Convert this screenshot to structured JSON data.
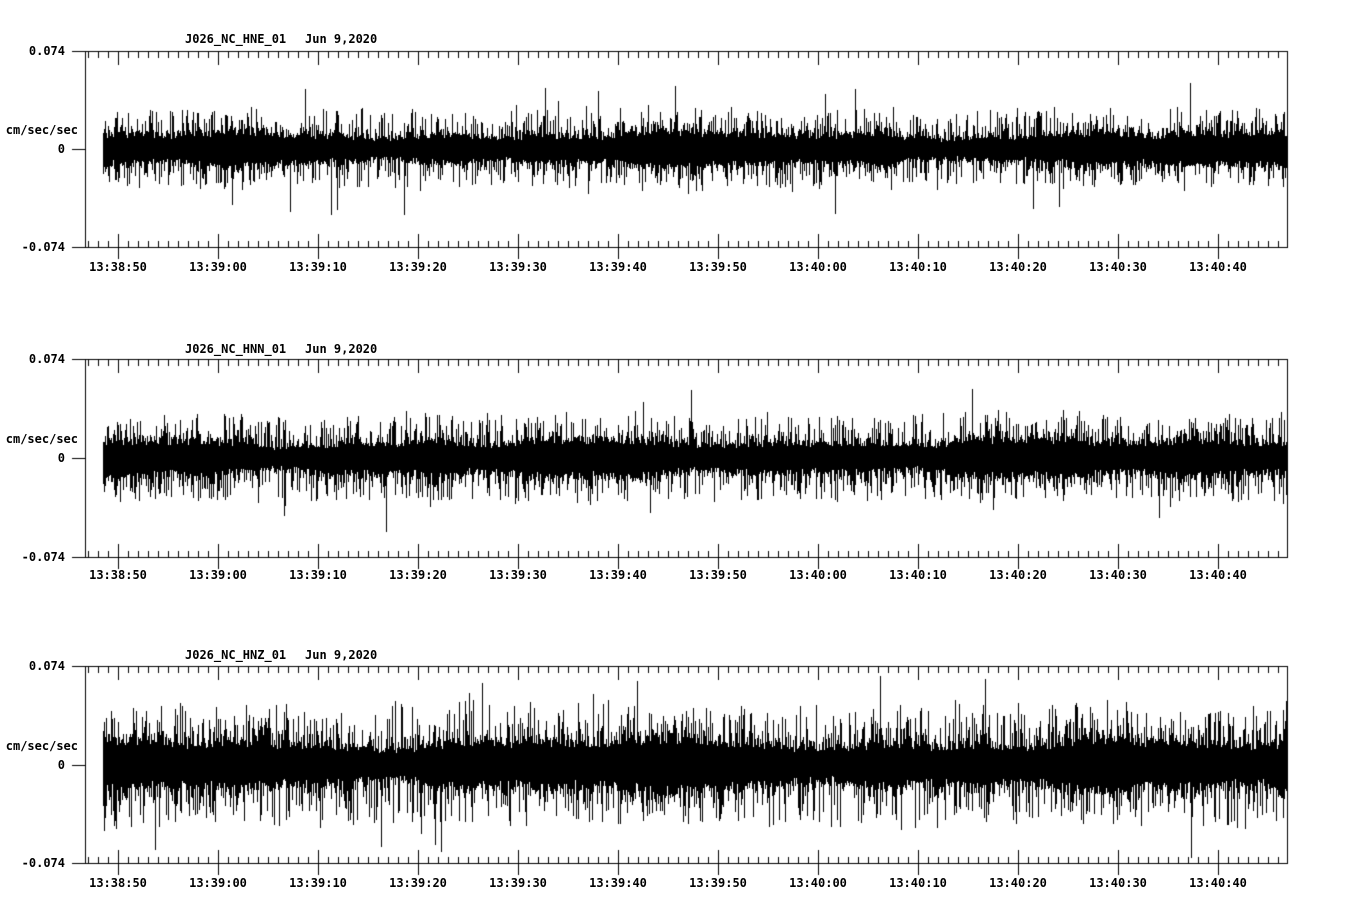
{
  "chart_data": {
    "type": "line",
    "subtype": "seismogram-noise-traces",
    "background": "#ffffff",
    "trace_color": "#000000",
    "axis_color": "#000000",
    "grid": false,
    "legend": false,
    "panels": [
      {
        "station": "J026_NC_HNE_01",
        "date": "Jun 9,2020",
        "ylabel": "cm/sec/sec",
        "y_labels": {
          "top": "0.074",
          "zero": "0",
          "bottom": "-0.074"
        },
        "ylim": [
          -0.074,
          0.074
        ],
        "waveform": {
          "mean": 0,
          "dense_band_amplitude": 0.01,
          "typical_peak_amplitude": 0.03,
          "max_peak_amplitude": 0.05,
          "character": "continuous broadband background noise"
        }
      },
      {
        "station": "J026_NC_HNN_01",
        "date": "Jun 9,2020",
        "ylabel": "cm/sec/sec",
        "y_labels": {
          "top": "0.074",
          "zero": "0",
          "bottom": "-0.074"
        },
        "ylim": [
          -0.074,
          0.074
        ],
        "waveform": {
          "mean": 0,
          "dense_band_amplitude": 0.011,
          "typical_peak_amplitude": 0.033,
          "max_peak_amplitude": 0.056,
          "character": "continuous broadband background noise"
        }
      },
      {
        "station": "J026_NC_HNZ_01",
        "date": "Jun 9,2020",
        "ylabel": "cm/sec/sec",
        "y_labels": {
          "top": "0.074",
          "zero": "0",
          "bottom": "-0.074"
        },
        "ylim": [
          -0.074,
          0.074
        ],
        "waveform": {
          "mean": 0,
          "dense_band_amplitude": 0.015,
          "typical_peak_amplitude": 0.046,
          "max_peak_amplitude": 0.073,
          "character": "continuous broadband background noise, largest amplitudes of the three components"
        }
      }
    ],
    "xticks": [
      "13:38:50",
      "13:39:00",
      "13:39:10",
      "13:39:20",
      "13:39:30",
      "13:39:40",
      "13:39:50",
      "13:40:00",
      "13:40:10",
      "13:40:20",
      "13:40:30",
      "13:40:40"
    ],
    "x_major_tick_interval_seconds": 10,
    "x_minor_tick_interval_seconds": 1
  }
}
